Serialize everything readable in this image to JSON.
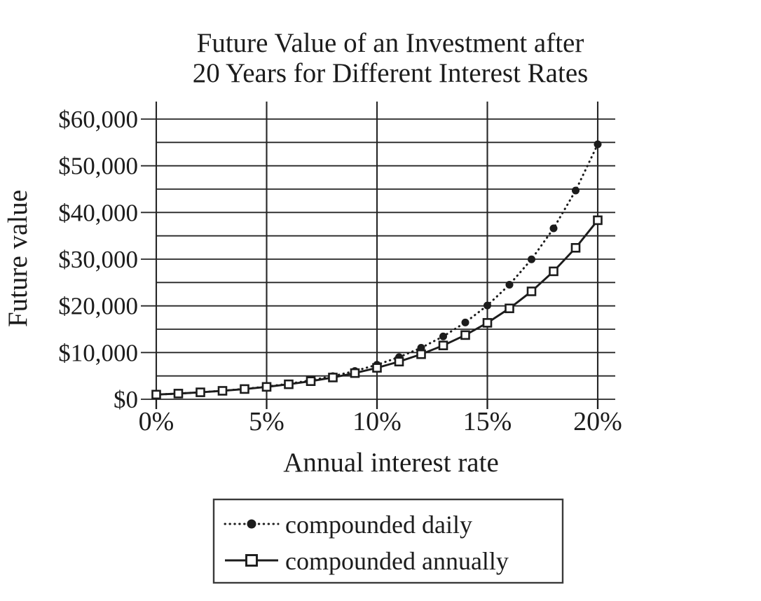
{
  "title": {
    "line1": "Future Value of an Investment after",
    "line2": "20 Years for Different Interest Rates"
  },
  "axes": {
    "y_label": "Future value",
    "x_label": "Annual interest rate",
    "y_ticks": [
      {
        "value": 0,
        "label": "$0"
      },
      {
        "value": 10000,
        "label": "$10,000"
      },
      {
        "value": 20000,
        "label": "$20,000"
      },
      {
        "value": 30000,
        "label": "$30,000"
      },
      {
        "value": 40000,
        "label": "$40,000"
      },
      {
        "value": 50000,
        "label": "$50,000"
      },
      {
        "value": 60000,
        "label": "$60,000"
      }
    ],
    "x_ticks": [
      {
        "value": 0,
        "label": "0%"
      },
      {
        "value": 5,
        "label": "5%"
      },
      {
        "value": 10,
        "label": "10%"
      },
      {
        "value": 15,
        "label": "15%"
      },
      {
        "value": 20,
        "label": "20%"
      }
    ],
    "y_minor_gridline_step": 5000
  },
  "legend": {
    "items": [
      {
        "label": "compounded daily",
        "line_style": "dotted",
        "marker": "filled-circle"
      },
      {
        "label": "compounded annually",
        "line_style": "solid",
        "marker": "open-square"
      }
    ]
  },
  "colors": {
    "ink": "#1c1c1c",
    "background": "#ffffff"
  },
  "chart_data": {
    "type": "line",
    "title": "Future Value of an Investment after 20 Years for Different Interest Rates",
    "xlabel": "Annual interest rate",
    "ylabel": "Future value",
    "x": [
      0,
      1,
      2,
      3,
      4,
      5,
      6,
      7,
      8,
      9,
      10,
      11,
      12,
      13,
      14,
      15,
      16,
      17,
      18,
      19,
      20
    ],
    "x_unit": "percent",
    "series": [
      {
        "name": "compounded daily",
        "line_style": "dotted",
        "marker": "filled-circle",
        "values": [
          1000,
          1221,
          1492,
          1822,
          2226,
          2718,
          3320,
          4055,
          4953,
          6050,
          7389,
          9025,
          11023,
          13464,
          16445,
          20086,
          24533,
          29964,
          36598,
          44701,
          54598
        ]
      },
      {
        "name": "compounded annually",
        "line_style": "solid",
        "marker": "open-square",
        "values": [
          1000,
          1220,
          1486,
          1806,
          2191,
          2653,
          3207,
          3870,
          4661,
          5604,
          6727,
          8062,
          9646,
          11523,
          13743,
          16367,
          19461,
          23106,
          27393,
          32429,
          38338
        ]
      }
    ],
    "xlim": [
      0,
      20
    ],
    "ylim": [
      0,
      60000
    ],
    "x_tick_step": 5,
    "y_tick_step": 10000,
    "y_gridline_step": 5000,
    "grid": "on",
    "legend_position": "bottom"
  }
}
